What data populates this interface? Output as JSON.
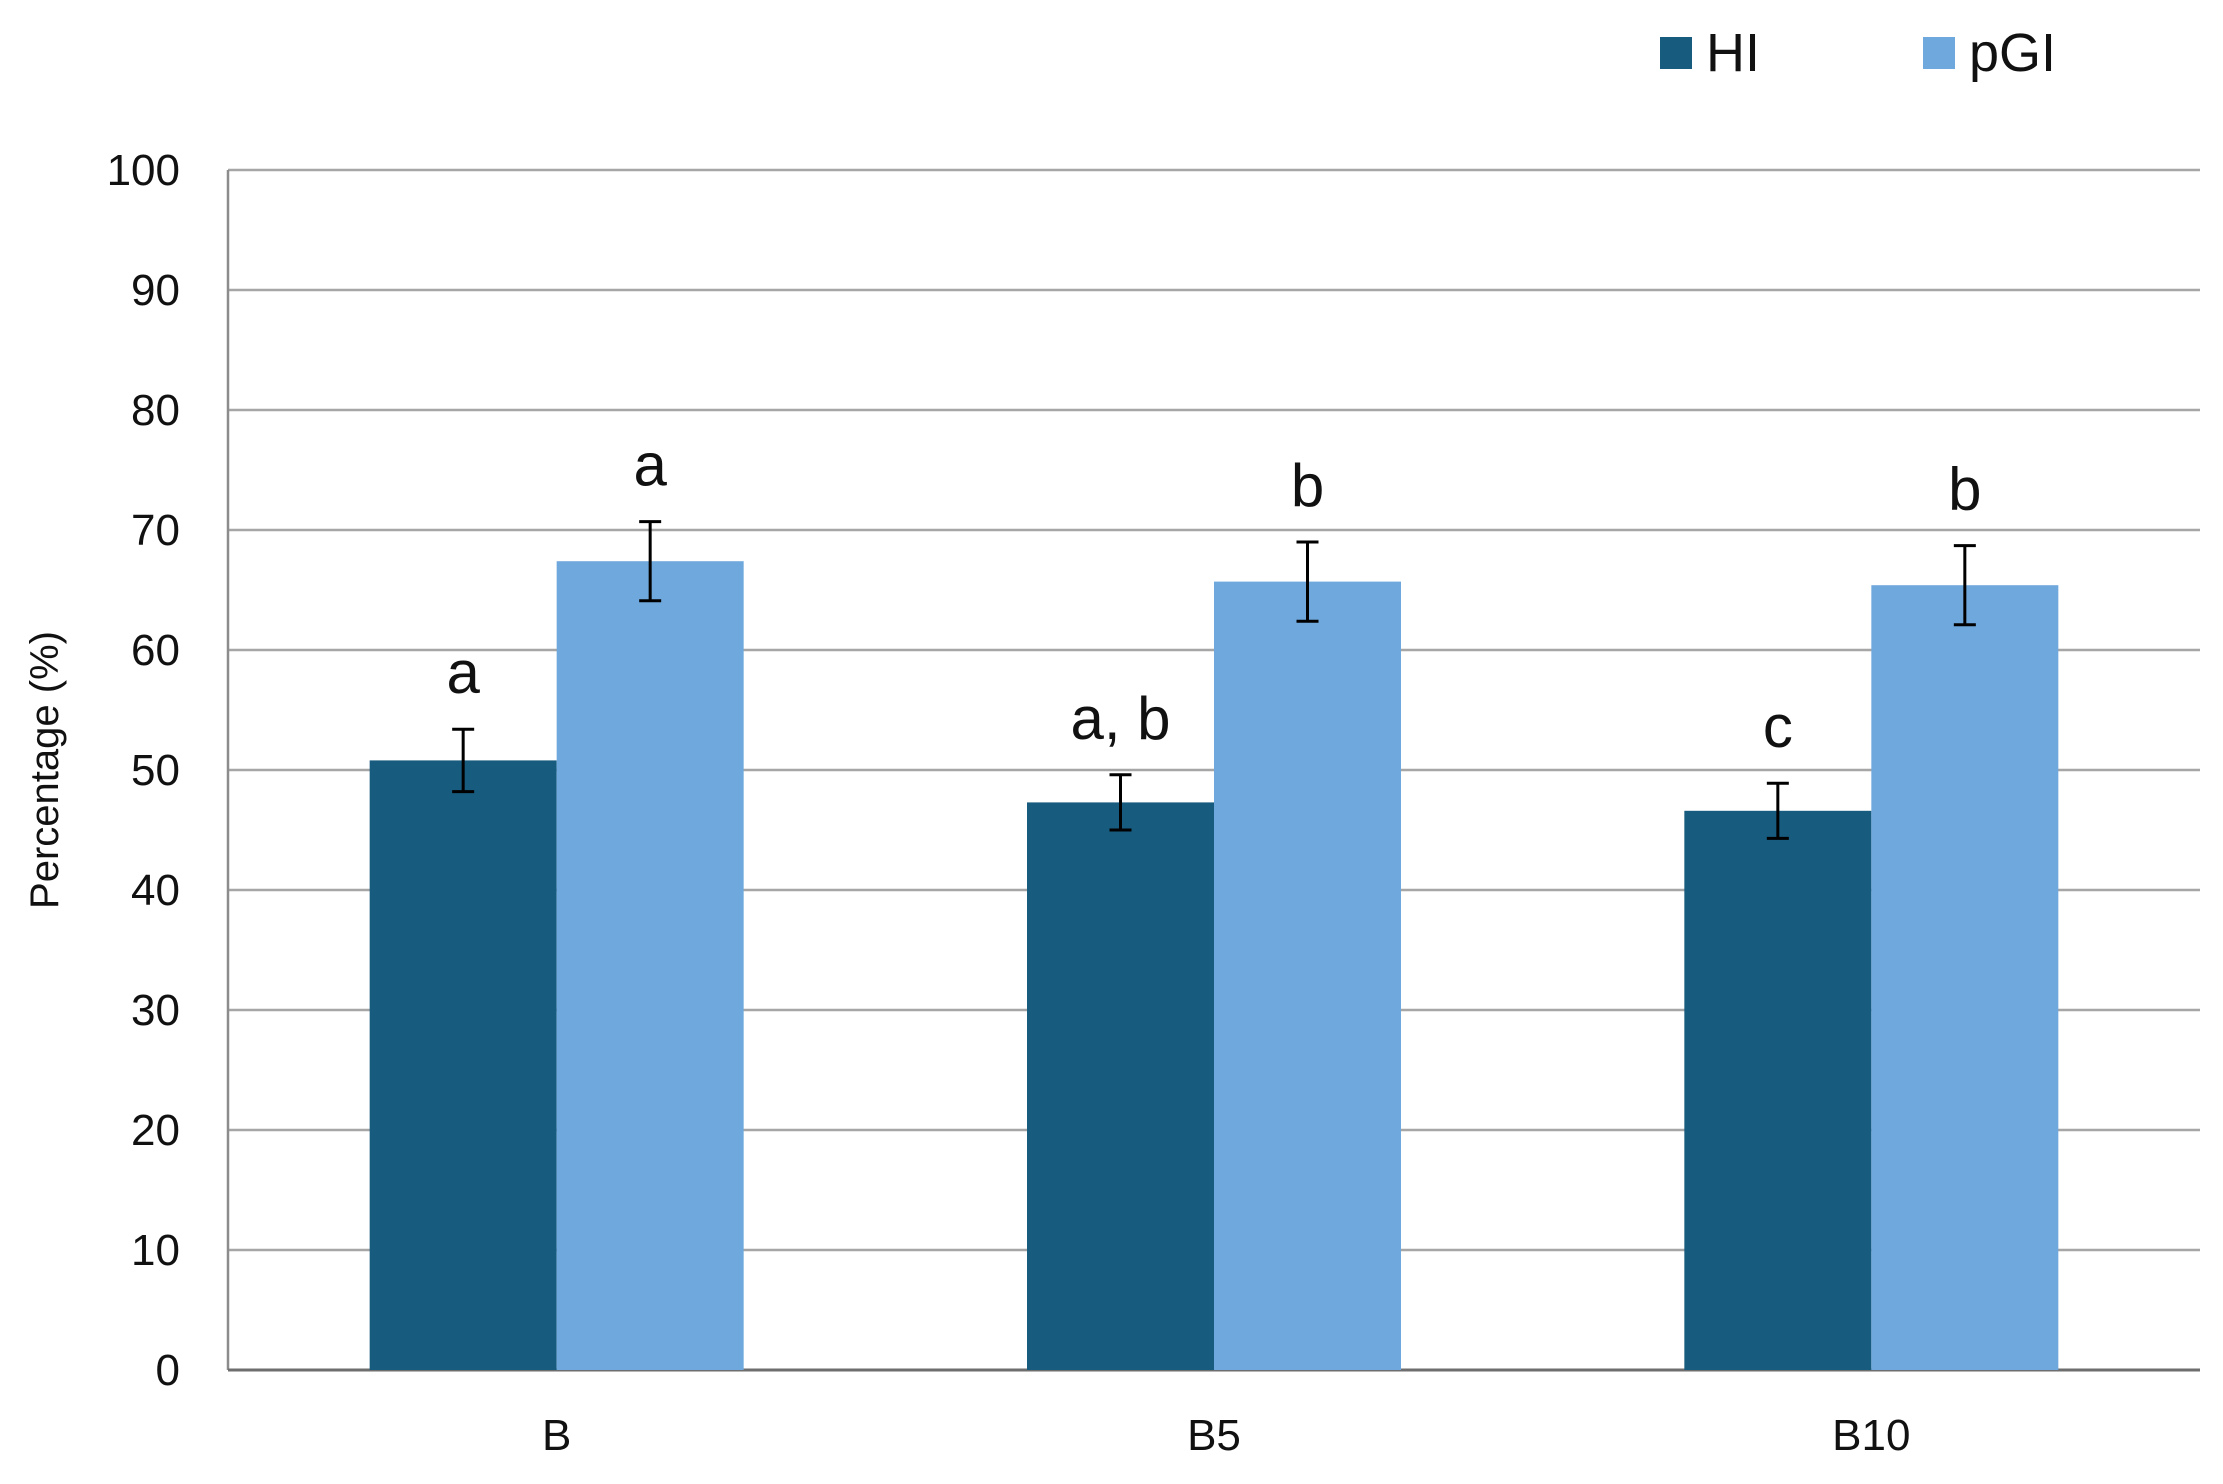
{
  "chart_data": {
    "type": "bar",
    "title": "",
    "xlabel": "",
    "ylabel": "Percentage (%)",
    "ylim": [
      0,
      100
    ],
    "y_ticks": [
      0,
      10,
      20,
      30,
      40,
      50,
      60,
      70,
      80,
      90,
      100
    ],
    "categories": [
      "B",
      "B5",
      "B10"
    ],
    "grid": true,
    "legend_position": "top-right",
    "series": [
      {
        "name": "HI",
        "color": "#175c7e",
        "values": [
          50.8,
          47.3,
          46.6
        ],
        "errors": [
          2.6,
          2.3,
          2.3
        ],
        "labels": [
          "a",
          "a, b",
          "c"
        ]
      },
      {
        "name": "pGI",
        "color": "#6fa8dc",
        "values": [
          67.4,
          65.7,
          65.4
        ],
        "errors": [
          3.3,
          3.3,
          3.3
        ],
        "labels": [
          "a",
          "b",
          "b"
        ]
      }
    ]
  }
}
